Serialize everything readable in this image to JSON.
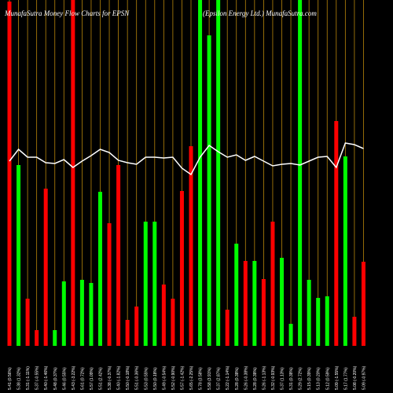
{
  "chart_data": {
    "type": "bar",
    "title": "MunafaSutra  Money Flow  Charts for EPSN",
    "subtitle": "(Epsilon  Energy Ltd.) MunafaSutra.com",
    "categories": [
      "5.41 (0.56%)",
      "5.38 (1.32%)",
      "5.31 (-1.11%)",
      "5.37 (-0.55%)",
      "5.40 (-1.46%)",
      "5.48 (0.37%)",
      "5.46 (0.55%)",
      "5.43 (-3.22%)",
      "5.61 (0.72%)",
      "5.57 (1.09%)",
      "5.51 (2.42%)",
      "5.38 (-0.37%)",
      "5.40 (-1.82%)",
      "5.50 (-0.18%)",
      "5.51 (-0.36%)",
      "5.53 (0.55%)",
      "5.50 (0.18%)",
      "5.49 (-0.54%)",
      "5.52 (-0.90%)",
      "5.57 (-1.42%)",
      "5.65 (-2.25%)",
      "5.78 (3.58%)",
      "5.58 (3.91%)",
      "5.37 (2.87%)",
      "5.22 (-1.14%)",
      "5.28 (0.38%)",
      "5.26 (-0.38%)",
      "5.28 (0.38%)",
      "5.26 (-1.13%)",
      "5.32 (-0.93%)",
      "5.37 (1.13%)",
      "5.31 (0.38%)",
      "5.29 (2.72%)",
      "5.15 (0.39%)",
      "5.13 (0.20%)",
      "5.12 (0.59%)",
      "5.09 (-1.55%)",
      "5.17 (1.77%)",
      "5.08 (-0.20%)",
      "5.09 (-0.97%)"
    ],
    "values": [
      438,
      230,
      60,
      20,
      200,
      20,
      82,
      440,
      84,
      80,
      196,
      156,
      230,
      33,
      50,
      158,
      158,
      78,
      60,
      197,
      254,
      440,
      395,
      440,
      46,
      130,
      108,
      108,
      85,
      158,
      112,
      28,
      440,
      84,
      61,
      63,
      286,
      241,
      37,
      107
    ],
    "colors": [
      "#ff0000",
      "#00ff00",
      "#ff0000",
      "#ff0000",
      "#ff0000",
      "#00ff00",
      "#00ff00",
      "#ff0000",
      "#00ff00",
      "#00ff00",
      "#00ff00",
      "#ff0000",
      "#ff0000",
      "#ff0000",
      "#ff0000",
      "#00ff00",
      "#00ff00",
      "#ff0000",
      "#ff0000",
      "#ff0000",
      "#ff0000",
      "#00ff00",
      "#00ff00",
      "#00ff00",
      "#ff0000",
      "#00ff00",
      "#ff0000",
      "#00ff00",
      "#ff0000",
      "#ff0000",
      "#00ff00",
      "#00ff00",
      "#00ff00",
      "#00ff00",
      "#00ff00",
      "#00ff00",
      "#ff0000",
      "#00ff00",
      "#ff0000",
      "#ff0000"
    ],
    "line": {
      "color": "#ffffff",
      "values": [
        235,
        250,
        240,
        240,
        233,
        232,
        237,
        227,
        235,
        242,
        250,
        246,
        236,
        233,
        231,
        240,
        240,
        239,
        240,
        226,
        218,
        240,
        255,
        247,
        240,
        243,
        236,
        241,
        235,
        229,
        231,
        232,
        230,
        235,
        240,
        241,
        227,
        258,
        256,
        251
      ]
    },
    "ylim": [
      0,
      440
    ],
    "gridline_color": "#b8860b"
  }
}
